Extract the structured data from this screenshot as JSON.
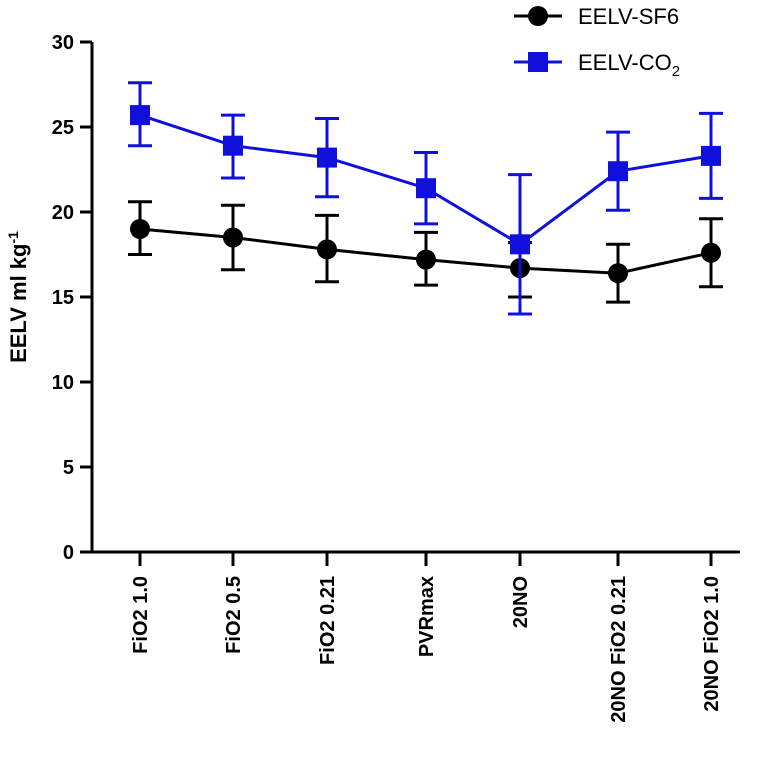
{
  "chart_data": {
    "type": "line",
    "title": "",
    "xlabel": "",
    "ylabel": "EELV ml kg",
    "ylabel_superscript": "-1",
    "ylim": [
      0,
      30
    ],
    "yticks": [
      0,
      5,
      10,
      15,
      20,
      25,
      30
    ],
    "categories": [
      "FiO2 1.0",
      "FiO2 0.5",
      "FiO2 0.21",
      "PVRmax",
      "20NO",
      "20NO FiO2 0.21",
      "20NO FiO2 1.0"
    ],
    "series": [
      {
        "name": "EELV-SF6",
        "legend_main": "EELV-SF6",
        "legend_sub": "",
        "color": "#000000",
        "marker": "circle",
        "values": [
          19.0,
          18.5,
          17.8,
          17.2,
          16.7,
          16.4,
          17.6
        ],
        "err_low": [
          17.5,
          16.6,
          15.9,
          15.7,
          15.0,
          14.7,
          15.6
        ],
        "err_high": [
          20.6,
          20.4,
          19.8,
          18.8,
          18.2,
          18.1,
          19.6
        ]
      },
      {
        "name": "EELV-CO2",
        "legend_main": "EELV-CO",
        "legend_sub": "2",
        "color": "#1010dd",
        "marker": "square",
        "values": [
          25.7,
          23.9,
          23.2,
          21.4,
          18.1,
          22.4,
          23.3
        ],
        "err_low": [
          23.9,
          22.0,
          20.9,
          19.3,
          14.0,
          20.1,
          20.8
        ],
        "err_high": [
          27.6,
          25.7,
          25.5,
          23.5,
          22.2,
          24.7,
          25.8
        ]
      }
    ],
    "legend_position": "top-right"
  }
}
